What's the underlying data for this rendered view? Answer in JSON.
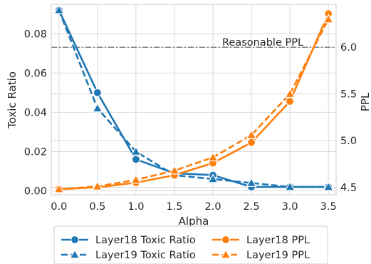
{
  "chart_data": {
    "type": "line",
    "x": [
      0.0,
      0.5,
      1.0,
      1.5,
      2.0,
      2.5,
      3.0,
      3.5
    ],
    "x_tick_labels": [
      "0.0",
      "0.5",
      "1.0",
      "1.5",
      "2.0",
      "2.5",
      "3.0",
      "3.5"
    ],
    "xlabel": "Alpha",
    "ylabel_left": "Toxic Ratio",
    "ylabel_right": "PPL",
    "ylim_left": [
      -0.002,
      0.095
    ],
    "ylim_right": [
      4.42,
      6.46
    ],
    "y_left_ticks": [
      0.0,
      0.02,
      0.04,
      0.06,
      0.08
    ],
    "y_left_tick_labels": [
      "0.00",
      "0.02",
      "0.04",
      "0.06",
      "0.08"
    ],
    "y_right_ticks": [
      4.5,
      5.0,
      5.5,
      6.0
    ],
    "y_right_tick_labels": [
      "4.5",
      "5.0",
      "5.5",
      "6.0"
    ],
    "grid": true,
    "legend_position": "bottom-outside",
    "reference_line": {
      "axis": "right",
      "value": 6.0,
      "label": "Reasonable PPL",
      "color": "#808080"
    },
    "series": [
      {
        "name": "Layer18 Toxic Ratio",
        "axis": "left",
        "color": "#1f77b4",
        "dash": "solid",
        "marker": "circle",
        "values": [
          0.092,
          0.05,
          0.016,
          0.009,
          0.008,
          0.002,
          0.002,
          0.002
        ]
      },
      {
        "name": "Layer19 Toxic Ratio",
        "axis": "left",
        "color": "#1f77b4",
        "dash": "dashed",
        "marker": "triangle",
        "values": [
          0.092,
          0.042,
          0.02,
          0.008,
          0.006,
          0.004,
          0.002,
          0.002
        ]
      },
      {
        "name": "Layer18 PPL",
        "axis": "right",
        "color": "#ff7f0e",
        "dash": "solid",
        "marker": "circle",
        "values": [
          4.48,
          4.5,
          4.55,
          4.63,
          4.76,
          4.98,
          5.42,
          6.36
        ]
      },
      {
        "name": "Layer19 PPL",
        "axis": "right",
        "color": "#ff7f0e",
        "dash": "dashed",
        "marker": "triangle",
        "values": [
          4.48,
          4.51,
          4.58,
          4.68,
          4.82,
          5.06,
          5.5,
          6.3
        ]
      }
    ]
  }
}
